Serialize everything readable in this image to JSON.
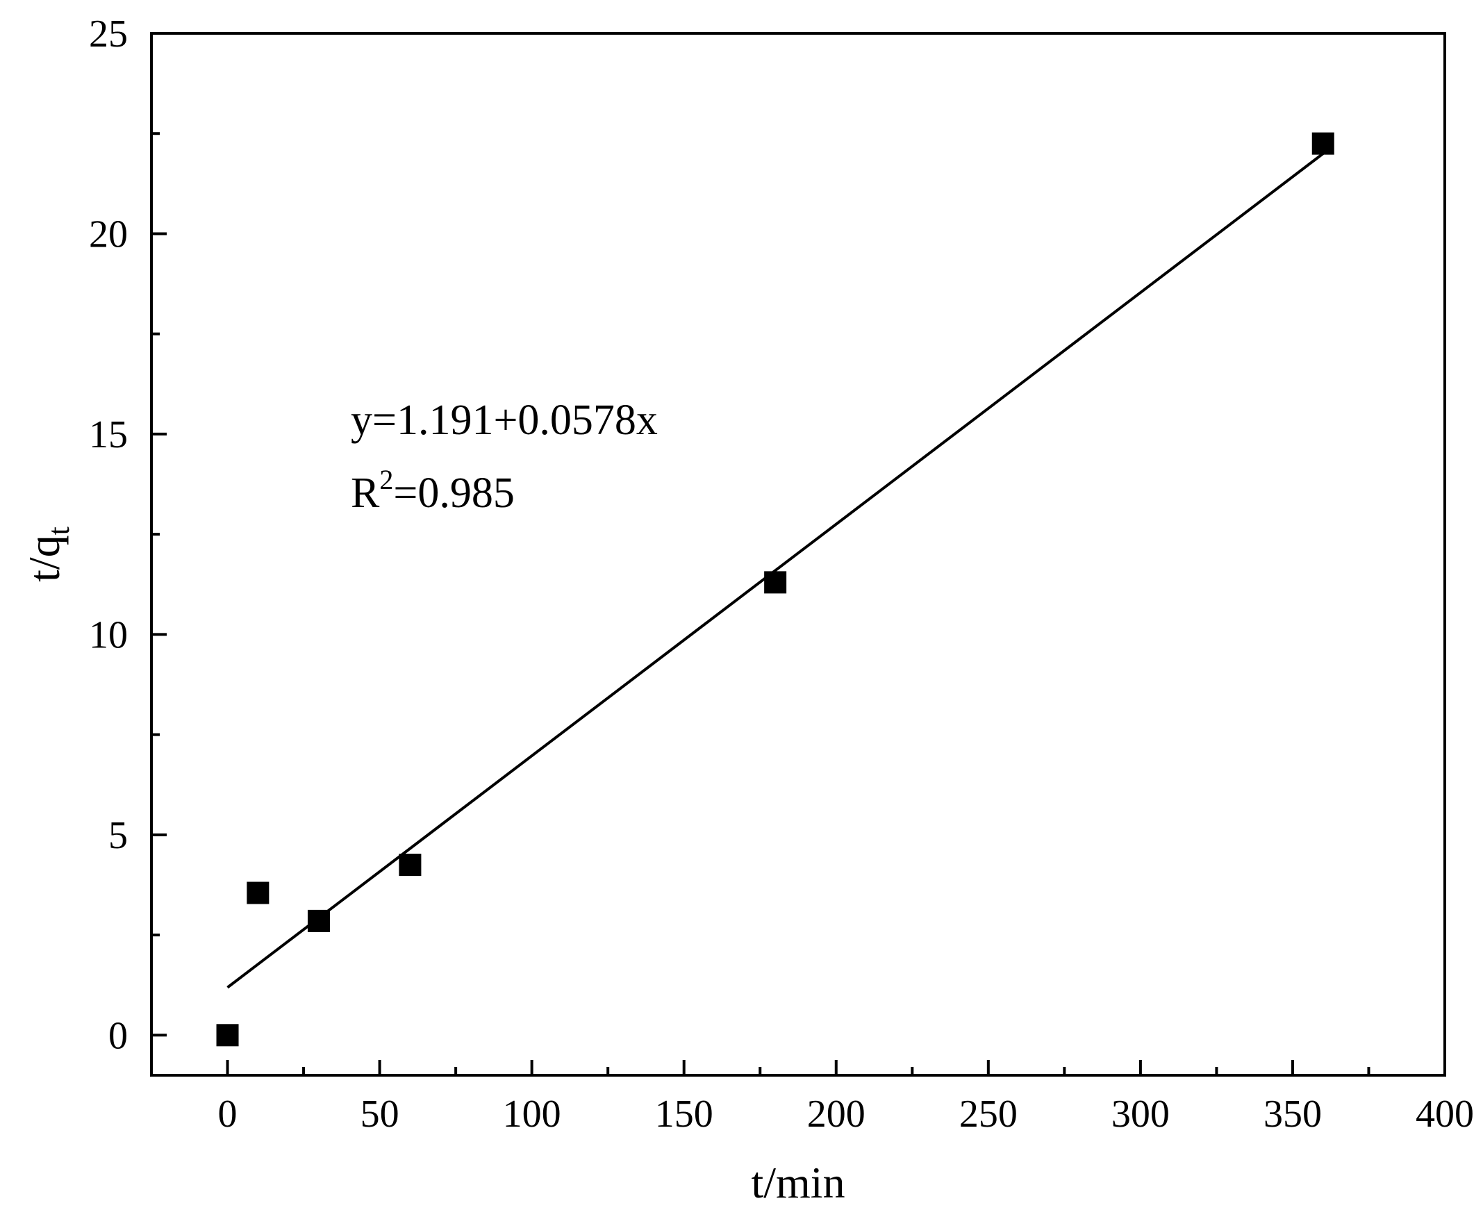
{
  "chart_data": {
    "type": "scatter",
    "xlabel": "t/min",
    "ylabel": {
      "main": "t/q",
      "sub": "t"
    },
    "xlim": [
      -25,
      400
    ],
    "ylim": [
      -1,
      25
    ],
    "xticks": [
      0,
      50,
      100,
      150,
      200,
      250,
      300,
      350,
      400
    ],
    "yticks": [
      0,
      5,
      10,
      15,
      20,
      25
    ],
    "x_minor_step": 25,
    "y_minor_step": 2.5,
    "grid": false,
    "series": [
      {
        "marker": "square",
        "color": "#000000",
        "points": [
          {
            "x": 0,
            "y": 0
          },
          {
            "x": 10,
            "y": 3.55
          },
          {
            "x": 30,
            "y": 2.85
          },
          {
            "x": 60,
            "y": 4.25
          },
          {
            "x": 180,
            "y": 11.3
          },
          {
            "x": 360,
            "y": 22.25
          }
        ]
      }
    ],
    "fit": {
      "intercept": 1.191,
      "slope": 0.0578,
      "x_range": [
        0,
        360
      ],
      "color": "#000000"
    },
    "annotations": {
      "equation": "y=1.191+0.0578x",
      "r2_prefix": "R",
      "r2_sup": "2",
      "r2_value": "=0.985"
    }
  }
}
